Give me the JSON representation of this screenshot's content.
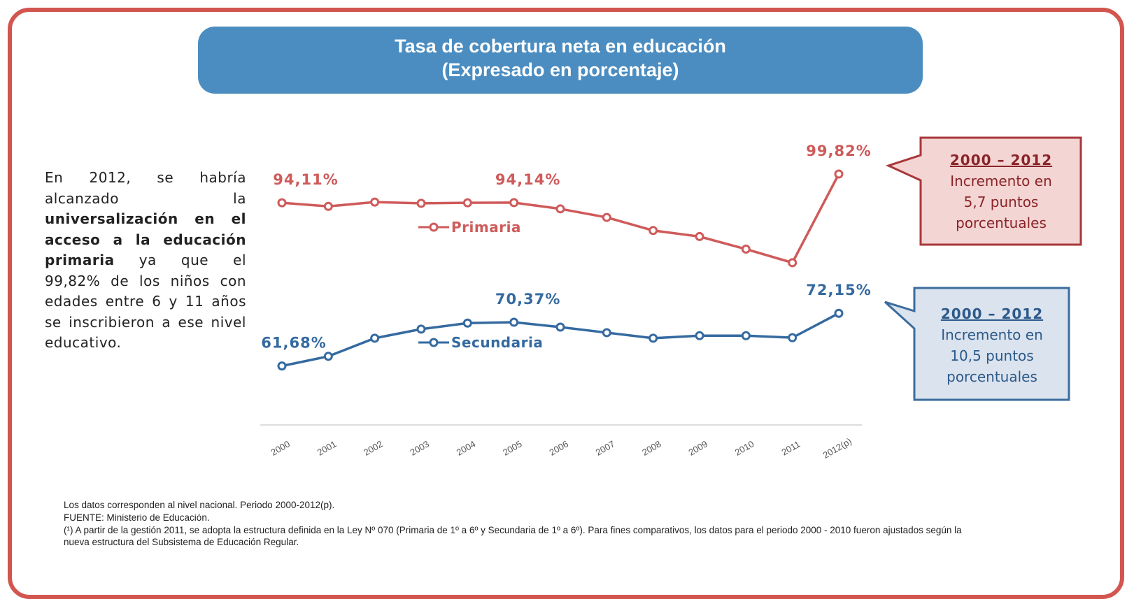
{
  "chart_data": {
    "type": "line",
    "title": [
      "Tasa de cobertura neta en educación",
      "(Expresado en porcentaje)"
    ],
    "categories": [
      "2000",
      "2001",
      "2002",
      "2003",
      "2004",
      "2005",
      "2006",
      "2007",
      "2008",
      "2009",
      "2010",
      "2011",
      "2012(p)"
    ],
    "ylim": [
      50,
      105
    ],
    "series": [
      {
        "name": "Primaria",
        "color": "#cf5a5a",
        "values": [
          94.11,
          93.4,
          94.25,
          94.0,
          94.1,
          94.14,
          92.9,
          91.2,
          88.6,
          87.4,
          84.9,
          82.2,
          99.82
        ],
        "value_labels": [
          "94,11%",
          null,
          null,
          null,
          null,
          "94,14%",
          null,
          null,
          null,
          null,
          null,
          null,
          "99,82%"
        ]
      },
      {
        "name": "Secundaria",
        "color": "#356aa0",
        "values": [
          61.68,
          63.6,
          67.2,
          69.0,
          70.2,
          70.37,
          69.4,
          68.3,
          67.2,
          67.7,
          67.7,
          67.3,
          72.15
        ],
        "value_labels": [
          "61,68%",
          null,
          null,
          null,
          null,
          "70,37%",
          null,
          null,
          null,
          null,
          null,
          null,
          "72,15%"
        ]
      }
    ],
    "side_text": {
      "before": "En 2012, se habría alcanzado la",
      "bold": "universalización en el acceso a la educación primaria",
      "after": "ya que el 99,82% de los niños con edades entre 6 y 11 años se inscribieron a ese nivel educativo."
    },
    "annotations": [
      {
        "title": "2000 – 2012",
        "lines": [
          "Incremento en",
          "5,7 puntos",
          "porcentuales"
        ]
      },
      {
        "title": "2000 – 2012",
        "lines": [
          "Incremento en",
          "10,5 puntos",
          "porcentuales"
        ]
      }
    ],
    "notes": [
      "Los datos corresponden al nivel nacional. Periodo 2000-2012(p).",
      "FUENTE: Ministerio de Educación.",
      "(¹) A partir de la gestión 2011, se adopta la estructura definida en la Ley Nº 070 (Primaria de 1º a 6º y Secundaria de 1º a 6º). Para fines comparativos, los datos para el periodo 2000 - 2010 fueron ajustados según la nueva estructura del Subsistema de Educación Regular."
    ]
  }
}
